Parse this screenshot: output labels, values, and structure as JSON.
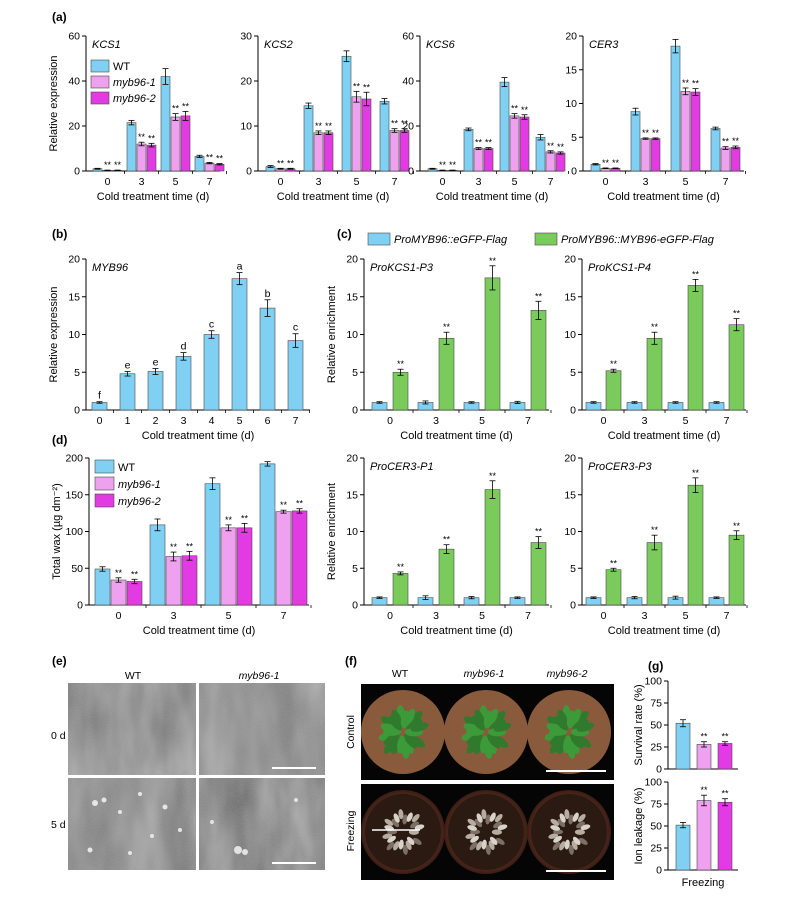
{
  "colors": {
    "wt": "#7FD0F2",
    "myb1": "#EDA1EE",
    "myb2": "#E23BE3",
    "gfp": "#7FD0F2",
    "myb96gfp": "#7ACB5C"
  },
  "panels": {
    "a": "(a)",
    "b": "(b)",
    "c": "(c)",
    "d": "(d)",
    "e": "(e)",
    "f": "(f)",
    "g": "(g)"
  },
  "legends": {
    "genotypes": [
      "WT",
      "myb96-1",
      "myb96-2"
    ],
    "chip": [
      "ProMYB96::eGFP-Flag",
      "ProMYB96::MYB96-eGFP-Flag"
    ]
  },
  "photos": {
    "e_cols": [
      "WT",
      "myb96-1"
    ],
    "e_rows": [
      "0 d",
      "5 d"
    ],
    "f_cols": [
      "WT",
      "myb96-1",
      "myb96-2"
    ],
    "f_rows": [
      "Control",
      "Freezing"
    ]
  },
  "chart_data": [
    {
      "id": "a1",
      "type": "bar",
      "title": "KCS1",
      "xlabel": "Cold treatment time (d)",
      "ylabel": "Relative   expression",
      "categories": [
        "0",
        "3",
        "5",
        "7"
      ],
      "ylim": [
        0,
        60
      ],
      "yticks": [
        0,
        20,
        40,
        60
      ],
      "series": [
        {
          "name": "WT",
          "values": [
            1,
            21.5,
            42,
            6.5
          ],
          "err": [
            0.2,
            1,
            3.5,
            0.5
          ]
        },
        {
          "name": "myb96-1",
          "values": [
            0.3,
            12,
            24,
            3.5
          ],
          "err": [
            0.1,
            0.8,
            1.5,
            0.3
          ],
          "sig": [
            "**",
            "**",
            "**",
            "**"
          ]
        },
        {
          "name": "myb96-2",
          "values": [
            0.3,
            11.5,
            24.5,
            3
          ],
          "err": [
            0.1,
            0.8,
            2,
            0.3
          ],
          "sig": [
            "**",
            "**",
            "**",
            "**"
          ]
        }
      ]
    },
    {
      "id": "a2",
      "type": "bar",
      "title": "KCS2",
      "xlabel": "Cold treatment time (d)",
      "ylabel": "",
      "categories": [
        "0",
        "3",
        "5",
        "7"
      ],
      "ylim": [
        0,
        30
      ],
      "yticks": [
        0,
        10,
        20,
        30
      ],
      "series": [
        {
          "name": "WT",
          "values": [
            1,
            14.5,
            25.5,
            15.5
          ],
          "err": [
            0.2,
            0.6,
            1.2,
            0.6
          ]
        },
        {
          "name": "myb96-1",
          "values": [
            0.5,
            8.5,
            16.5,
            9
          ],
          "err": [
            0.1,
            0.4,
            1.2,
            0.4
          ],
          "sig": [
            "**",
            "**",
            "**",
            "**"
          ]
        },
        {
          "name": "myb96-2",
          "values": [
            0.5,
            8.5,
            16,
            9
          ],
          "err": [
            0.1,
            0.4,
            1.5,
            0.4
          ],
          "sig": [
            "**",
            "**",
            "**",
            "**"
          ]
        }
      ]
    },
    {
      "id": "a3",
      "type": "bar",
      "title": "KCS6",
      "xlabel": "Cold treatment time (d)",
      "ylabel": "",
      "categories": [
        "0",
        "3",
        "5",
        "7"
      ],
      "ylim": [
        0,
        60
      ],
      "yticks": [
        0,
        20,
        40,
        60
      ],
      "series": [
        {
          "name": "WT",
          "values": [
            1,
            18.5,
            39.5,
            15
          ],
          "err": [
            0.2,
            0.6,
            2,
            1.2
          ]
        },
        {
          "name": "myb96-1",
          "values": [
            0.3,
            10,
            24.5,
            8.5
          ],
          "err": [
            0.1,
            0.4,
            1,
            0.5
          ],
          "sig": [
            "**",
            "**",
            "**",
            "**"
          ]
        },
        {
          "name": "myb96-2",
          "values": [
            0.3,
            10,
            24,
            8
          ],
          "err": [
            0.1,
            0.4,
            1,
            0.5
          ],
          "sig": [
            "**",
            "**",
            "**",
            "**"
          ]
        }
      ]
    },
    {
      "id": "a4",
      "type": "bar",
      "title": "CER3",
      "xlabel": "Cold treatment time (d)",
      "ylabel": "",
      "categories": [
        "0",
        "3",
        "5",
        "7"
      ],
      "ylim": [
        0,
        20
      ],
      "yticks": [
        0,
        5,
        10,
        15,
        20
      ],
      "series": [
        {
          "name": "WT",
          "values": [
            1,
            8.8,
            18.5,
            6.3
          ],
          "err": [
            0.1,
            0.5,
            1,
            0.2
          ]
        },
        {
          "name": "myb96-1",
          "values": [
            0.4,
            4.8,
            11.8,
            3.4
          ],
          "err": [
            0.05,
            0.1,
            0.5,
            0.2
          ],
          "sig": [
            "**",
            "**",
            "**",
            "**"
          ]
        },
        {
          "name": "myb96-2",
          "values": [
            0.4,
            4.8,
            11.7,
            3.5
          ],
          "err": [
            0.05,
            0.1,
            0.5,
            0.2
          ],
          "sig": [
            "**",
            "**",
            "**",
            "**"
          ]
        }
      ]
    },
    {
      "id": "b",
      "type": "bar",
      "title": "MYB96",
      "xlabel": "Cold treatment time (d)",
      "ylabel": "Relative   expression",
      "categories": [
        "0",
        "1",
        "2",
        "3",
        "4",
        "5",
        "6",
        "7"
      ],
      "ylim": [
        0,
        20
      ],
      "yticks": [
        0,
        5,
        10,
        15,
        20
      ],
      "series": [
        {
          "name": "WT",
          "values": [
            1,
            4.8,
            5.1,
            7.1,
            10,
            17.4,
            13.5,
            9.2
          ],
          "err": [
            0.1,
            0.3,
            0.4,
            0.5,
            0.5,
            0.8,
            1.1,
            0.9
          ],
          "letters": [
            "f",
            "e",
            "e",
            "d",
            "c",
            "a",
            "b",
            "c"
          ]
        }
      ]
    },
    {
      "id": "c1",
      "type": "bar",
      "title": "ProKCS1-P3",
      "xlabel": "Cold treatment time (d)",
      "ylabel": "Relative enrichment",
      "categories": [
        "0",
        "3",
        "5",
        "7"
      ],
      "ylim": [
        0,
        20
      ],
      "yticks": [
        0,
        5,
        10,
        15,
        20
      ],
      "series": [
        {
          "name": "ProMYB96::eGFP-Flag",
          "values": [
            1,
            1,
            1,
            1
          ],
          "err": [
            0.1,
            0.2,
            0.1,
            0.15
          ]
        },
        {
          "name": "ProMYB96::MYB96-eGFP-Flag",
          "values": [
            5,
            9.5,
            17.5,
            13.2
          ],
          "err": [
            0.4,
            0.8,
            1.6,
            1.2
          ],
          "sig": [
            "**",
            "**",
            "**",
            "**"
          ]
        }
      ]
    },
    {
      "id": "c2",
      "type": "bar",
      "title": "ProKCS1-P4",
      "xlabel": "Cold treatment time (d)",
      "ylabel": "",
      "categories": [
        "0",
        "3",
        "5",
        "7"
      ],
      "ylim": [
        0,
        20
      ],
      "yticks": [
        0,
        5,
        10,
        15,
        20
      ],
      "series": [
        {
          "name": "ProMYB96::eGFP-Flag",
          "values": [
            1,
            1,
            1,
            1
          ],
          "err": [
            0.1,
            0.1,
            0.1,
            0.1
          ]
        },
        {
          "name": "ProMYB96::MYB96-eGFP-Flag",
          "values": [
            5.2,
            9.5,
            16.5,
            11.3
          ],
          "err": [
            0.2,
            0.8,
            0.8,
            0.8
          ],
          "sig": [
            "**",
            "**",
            "**",
            "**"
          ]
        }
      ]
    },
    {
      "id": "d",
      "type": "bar",
      "title": "",
      "xlabel": "Cold treatment time (d)",
      "ylabel": "Total wax (µg dm⁻²)",
      "categories": [
        "0",
        "3",
        "5",
        "7"
      ],
      "ylim": [
        0,
        200
      ],
      "yticks": [
        0,
        50,
        100,
        150,
        200
      ],
      "series": [
        {
          "name": "WT",
          "values": [
            49,
            109,
            165,
            192
          ],
          "err": [
            3,
            8,
            8,
            3
          ]
        },
        {
          "name": "myb96-1",
          "values": [
            34,
            66,
            105,
            127
          ],
          "err": [
            3,
            6,
            4,
            2
          ],
          "sig": [
            "**",
            "**",
            "**",
            "**"
          ]
        },
        {
          "name": "myb96-2",
          "values": [
            32,
            67,
            105,
            128
          ],
          "err": [
            3,
            6,
            6,
            3
          ],
          "sig": [
            "**",
            "**",
            "**",
            "**"
          ]
        }
      ]
    },
    {
      "id": "c3",
      "type": "bar",
      "title": "ProCER3-P1",
      "xlabel": "Cold treatment time (d)",
      "ylabel": "Relative enrichment",
      "categories": [
        "0",
        "3",
        "5",
        "7"
      ],
      "ylim": [
        0,
        20
      ],
      "yticks": [
        0,
        5,
        10,
        15,
        20
      ],
      "series": [
        {
          "name": "ProMYB96::eGFP-Flag",
          "values": [
            1,
            1,
            1,
            1
          ],
          "err": [
            0.1,
            0.25,
            0.15,
            0.1
          ]
        },
        {
          "name": "ProMYB96::MYB96-eGFP-Flag",
          "values": [
            4.3,
            7.6,
            15.7,
            8.5
          ],
          "err": [
            0.2,
            0.6,
            1.2,
            0.8
          ],
          "sig": [
            "**",
            "**",
            "**",
            "**"
          ]
        }
      ]
    },
    {
      "id": "c4",
      "type": "bar",
      "title": "ProCER3-P3",
      "xlabel": "Cold treatment time (d)",
      "ylabel": "",
      "categories": [
        "0",
        "3",
        "5",
        "7"
      ],
      "ylim": [
        0,
        20
      ],
      "yticks": [
        0,
        5,
        10,
        15,
        20
      ],
      "series": [
        {
          "name": "ProMYB96::eGFP-Flag",
          "values": [
            1,
            1,
            1,
            1
          ],
          "err": [
            0.1,
            0.15,
            0.2,
            0.1
          ]
        },
        {
          "name": "ProMYB96::MYB96-eGFP-Flag",
          "values": [
            4.8,
            8.5,
            16.3,
            9.5
          ],
          "err": [
            0.2,
            1,
            1,
            0.6
          ],
          "sig": [
            "**",
            "**",
            "**",
            "**"
          ]
        }
      ]
    },
    {
      "id": "g1",
      "type": "bar",
      "title": "",
      "xlabel": "",
      "ylabel": "Survival rate (%)",
      "categories": [
        ""
      ],
      "ylim": [
        0,
        100
      ],
      "yticks": [
        0,
        25,
        50,
        75,
        100
      ],
      "series": [
        {
          "name": "WT",
          "values": [
            52
          ],
          "err": [
            4
          ]
        },
        {
          "name": "myb96-1",
          "values": [
            28
          ],
          "err": [
            3
          ],
          "sig": [
            "**"
          ]
        },
        {
          "name": "myb96-2",
          "values": [
            29
          ],
          "err": [
            2
          ],
          "sig": [
            "**"
          ]
        }
      ]
    },
    {
      "id": "g2",
      "type": "bar",
      "title": "",
      "xlabel": "Freezing",
      "ylabel": "Ion leakage (%)",
      "categories": [
        ""
      ],
      "ylim": [
        0,
        100
      ],
      "yticks": [
        0,
        25,
        50,
        75,
        100
      ],
      "series": [
        {
          "name": "WT",
          "values": [
            51
          ],
          "err": [
            3
          ]
        },
        {
          "name": "myb96-1",
          "values": [
            79
          ],
          "err": [
            6
          ],
          "sig": [
            "**"
          ]
        },
        {
          "name": "myb96-2",
          "values": [
            77
          ],
          "err": [
            4
          ],
          "sig": [
            "**"
          ]
        }
      ]
    }
  ]
}
